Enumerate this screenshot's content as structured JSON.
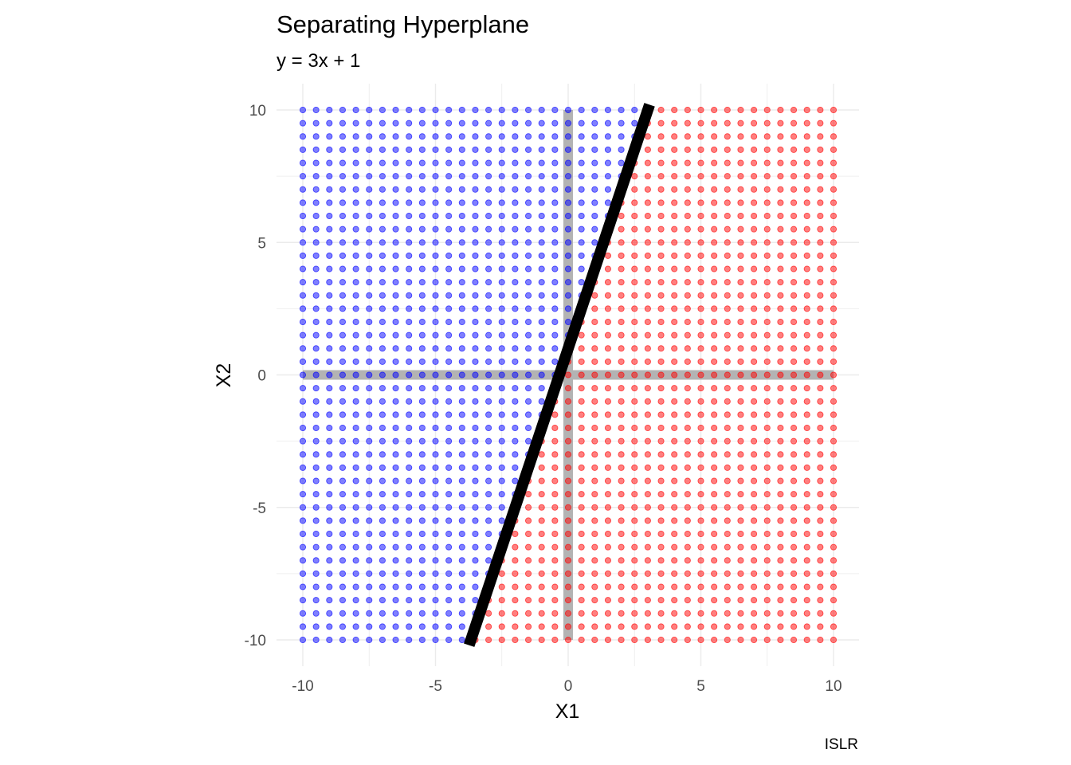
{
  "chart_data": {
    "type": "scatter",
    "title": "Separating Hyperplane",
    "subtitle": "y = 3x + 1",
    "caption": "ISLR",
    "xlabel": "X1",
    "ylabel": "X2",
    "xlim": [
      -10,
      10
    ],
    "ylim": [
      -10,
      10
    ],
    "x_ticks": [
      -10,
      -5,
      0,
      5,
      10
    ],
    "y_ticks": [
      -10,
      -5,
      0,
      5,
      10
    ],
    "x_tick_labels": [
      "-10",
      "-5",
      "0",
      "5",
      "10"
    ],
    "y_tick_labels": [
      "-10",
      "-5",
      "0",
      "5",
      "10"
    ],
    "grid": true,
    "grid_step": 0.5,
    "points": "regular grid of points from -10 to 10 in steps of 0.5 in both X1 and X2",
    "classes": [
      {
        "rule": "X2 > 3*X1 + 1",
        "color": "#0000ff"
      },
      {
        "rule": "X2 <= 3*X1 + 1",
        "color": "#ff0000"
      }
    ],
    "hyperplane": {
      "slope": 3,
      "intercept": 1,
      "x_range": [
        -3.667,
        3
      ],
      "color": "#000000"
    },
    "reference_lines": {
      "x": 0,
      "y": 0,
      "color": "#b3b3b3"
    },
    "colors": {
      "blue_class": "#0000ff",
      "red_class": "#ff0000",
      "line": "#000000",
      "axes": "#b3b3b3",
      "grid": "#ebebeb"
    }
  }
}
